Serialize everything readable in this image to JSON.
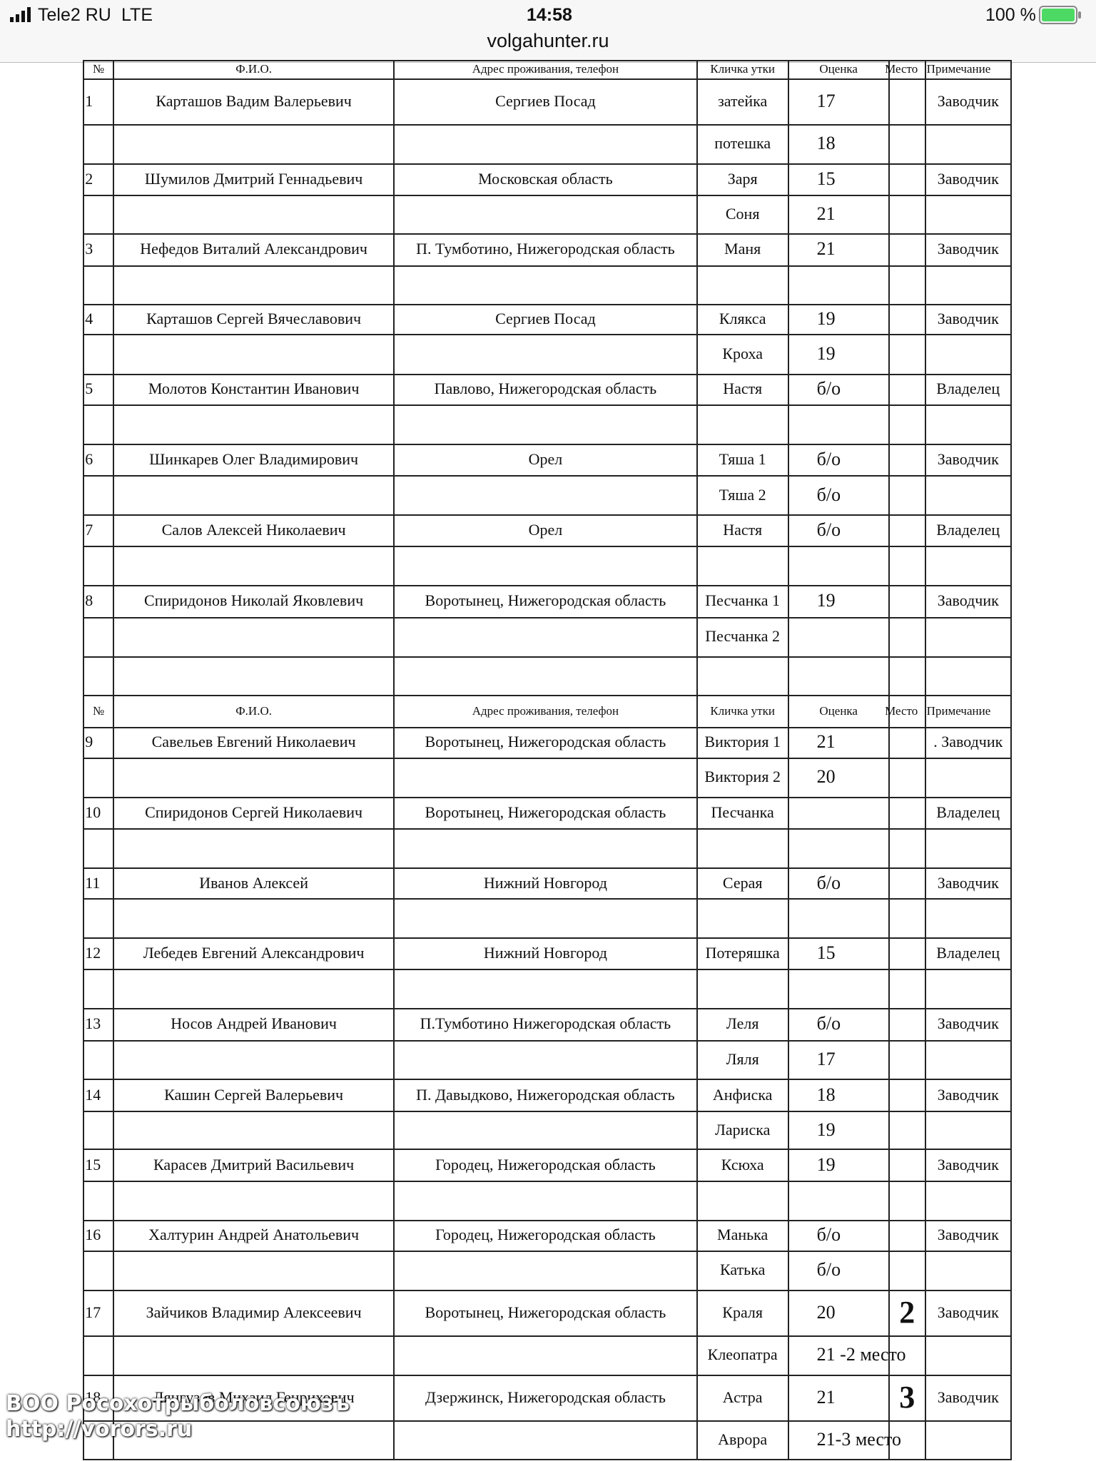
{
  "status": {
    "carrier": "Tele2 RU",
    "network": "LTE",
    "time": "14:58",
    "battery": "100 %",
    "url": "volgahunter.ru"
  },
  "table": {
    "header": [
      "№",
      "Ф.И.О.",
      "Адрес проживания, телефон",
      "Кличка утки",
      "Оценка",
      "Место",
      "Примечание"
    ],
    "rows": [
      [
        "1",
        "Карташов Вадим Валерьевич",
        "Сергиев Посад",
        "затейка",
        "17",
        null,
        "Заводчик"
      ],
      [
        null,
        null,
        null,
        "потешка",
        "18",
        null,
        null
      ],
      [
        "2",
        "Шумилов Дмитрий Геннадьевич",
        "Московская область",
        "Заря",
        "15",
        null,
        "Заводчик"
      ],
      [
        null,
        null,
        null,
        "Соня",
        "21",
        null,
        null
      ],
      [
        "3",
        "Нефедов Виталий Александрович",
        "П. Тумботино, Нижегородская область",
        "Маня",
        "21",
        null,
        "Заводчик"
      ],
      [
        null,
        null,
        null,
        null,
        null,
        null,
        null
      ],
      [
        "4",
        "Карташов Сергей Вячеславович",
        "Сергиев Посад",
        "Клякса",
        "19",
        null,
        "Заводчик"
      ],
      [
        null,
        null,
        null,
        "Кроха",
        "19",
        null,
        null
      ],
      [
        "5",
        "Молотов Константин Иванович",
        "Павлово, Нижегородская область",
        "Настя",
        "б/о",
        null,
        "Владелец"
      ],
      [
        null,
        null,
        null,
        null,
        null,
        null,
        null
      ],
      [
        "6",
        "Шинкарев Олег Владимирович",
        "Орел",
        "Тяша 1",
        "б/о",
        null,
        "Заводчик"
      ],
      [
        null,
        null,
        null,
        "Тяша 2",
        "б/о",
        null,
        null
      ],
      [
        "7",
        "Салов Алексей Николаевич",
        "Орел",
        "Настя",
        "б/о",
        null,
        "Владелец"
      ],
      [
        null,
        null,
        null,
        null,
        null,
        null,
        null
      ],
      [
        "8",
        "Спиридонов Николай Яковлевич",
        "Воротынец, Нижегородская область",
        "Песчанка 1",
        "19",
        null,
        "Заводчик"
      ],
      [
        null,
        null,
        null,
        "Песчанка 2",
        null,
        null,
        null
      ],
      [
        null,
        null,
        null,
        null,
        null,
        null,
        null
      ],
      [
        "№",
        "Ф.И.О.",
        "Адрес проживания, телефон",
        "Кличка утки",
        "Оценка",
        "Место",
        "Примечание"
      ],
      [
        "9",
        "Савельев Евгений Николаевич",
        "Воротынец, Нижегородская область",
        "Виктория 1",
        "21",
        null,
        ". Заводчик"
      ],
      [
        null,
        null,
        null,
        "Виктория 2",
        "20",
        null,
        null
      ],
      [
        "10",
        "Спиридонов Сергей Николаевич",
        "Воротынец, Нижегородская область",
        "Песчанка",
        null,
        null,
        "Владелец"
      ],
      [
        null,
        null,
        null,
        null,
        null,
        null,
        null
      ],
      [
        "11",
        "Иванов Алексей",
        "Нижний Новгород",
        "Серая",
        "б/о",
        null,
        "Заводчик"
      ],
      [
        null,
        null,
        null,
        null,
        null,
        null,
        null
      ],
      [
        "12",
        "Лебедев Евгений Александрович",
        "Нижний Новгород",
        "Потеряшка",
        "15",
        null,
        "Владелец"
      ],
      [
        null,
        null,
        null,
        null,
        null,
        null,
        null
      ],
      [
        "13",
        "Носов Андрей Иванович",
        "П.Тумботино Нижегородская область",
        "Леля",
        "б/о",
        null,
        "Заводчик"
      ],
      [
        null,
        null,
        null,
        "Ляля",
        "17",
        null,
        null
      ],
      [
        "14",
        "Кашин Сергей Валерьевич",
        "П. Давыдково, Нижегородская область",
        "Анфиска",
        "18",
        null,
        "Заводчик"
      ],
      [
        null,
        null,
        null,
        "Лариска",
        "19",
        null,
        null
      ],
      [
        "15",
        "Карасев Дмитрий Васильевич",
        "Городец, Нижегородская область",
        "Ксюха",
        "19",
        null,
        "Заводчик"
      ],
      [
        null,
        null,
        null,
        null,
        null,
        null,
        null
      ],
      [
        "16",
        "Халтурин Андрей Анатольевич",
        "Городец, Нижегородская область",
        "Манька",
        "б/о",
        null,
        "Заводчик"
      ],
      [
        null,
        null,
        null,
        "Катька",
        "б/о",
        null,
        null
      ],
      [
        "17",
        "Зайчиков Владимир Алексеевич",
        "Воротынец, Нижегородская область",
        "Краля",
        "20",
        "2",
        "Заводчик"
      ],
      [
        null,
        null,
        null,
        "Клеопатра",
        "21 -2 место",
        null,
        null
      ],
      [
        "18",
        "Лянгузов Михаил Генрихович",
        "Дзержинск, Нижегородская область",
        "Астра",
        "21",
        "3",
        "Заводчик"
      ],
      [
        null,
        null,
        null,
        "Аврора",
        "21-3 место",
        null,
        null
      ]
    ]
  },
  "watermark": {
    "org": "ВОО Росохотрыболовсоюзъ",
    "site": "http://vorors.ru"
  }
}
